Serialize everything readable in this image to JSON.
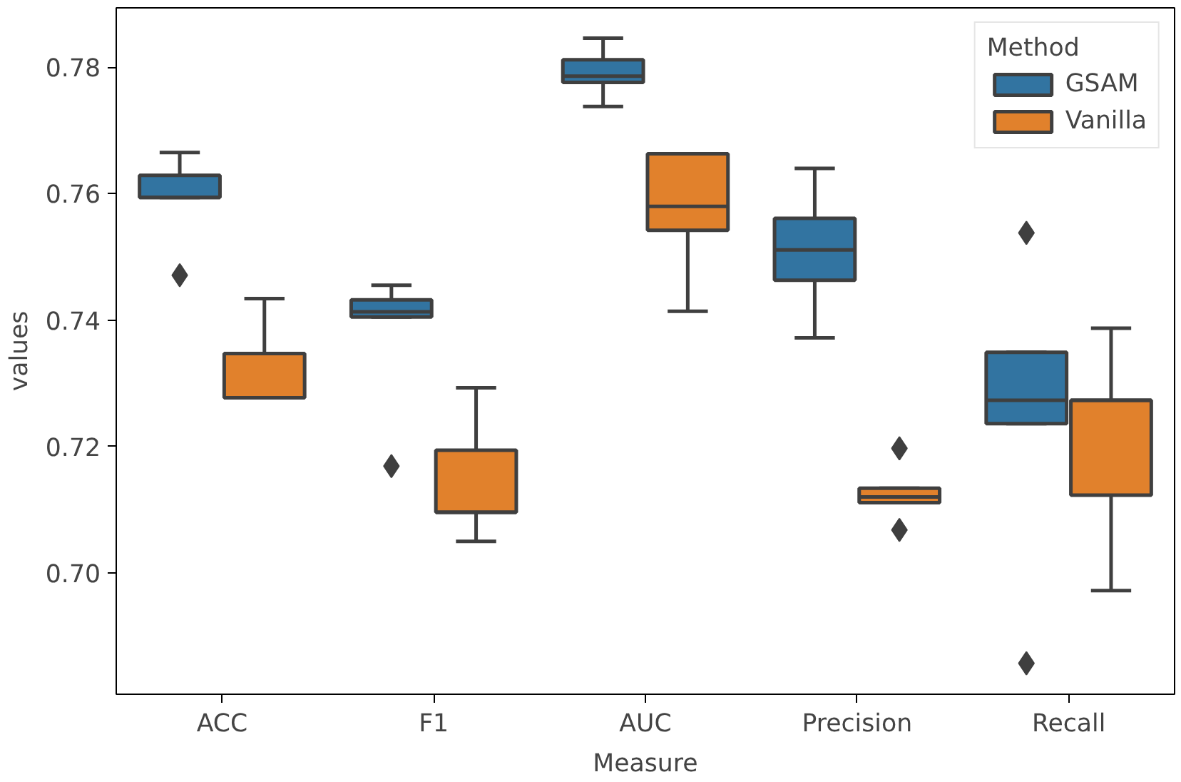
{
  "chart_data": {
    "type": "box",
    "xlabel": "Measure",
    "ylabel": "values",
    "legend_title": "Method",
    "categories": [
      "ACC",
      "F1",
      "AUC",
      "Precision",
      "Recall"
    ],
    "ylim": [
      0.6808,
      0.7894
    ],
    "yticks": [
      {
        "value": 0.7,
        "label": "0.70"
      },
      {
        "value": 0.72,
        "label": "0.72"
      },
      {
        "value": 0.74,
        "label": "0.74"
      },
      {
        "value": 0.76,
        "label": "0.76"
      },
      {
        "value": 0.78,
        "label": "0.78"
      }
    ],
    "grid": false,
    "legend": "top right",
    "marker": "diamond",
    "series": [
      {
        "name": "GSAM",
        "color": "#3274a1",
        "boxes": [
          {
            "low": 0.7594,
            "q1": 0.7594,
            "median": 0.7594,
            "q3": 0.7629,
            "high": 0.7665,
            "outliers": [
              0.7471
            ]
          },
          {
            "low": 0.7405,
            "q1": 0.7405,
            "median": 0.7413,
            "q3": 0.7432,
            "high": 0.7455,
            "outliers": [
              0.7169
            ]
          },
          {
            "low": 0.7738,
            "q1": 0.7776,
            "median": 0.7786,
            "q3": 0.7812,
            "high": 0.7846
          },
          {
            "low": 0.7372,
            "q1": 0.7463,
            "median": 0.7511,
            "q3": 0.7561,
            "high": 0.764
          },
          {
            "low": 0.7236,
            "q1": 0.7236,
            "median": 0.7273,
            "q3": 0.7349,
            "high": 0.7349,
            "outliers": [
              0.7538,
              0.6857
            ]
          }
        ]
      },
      {
        "name": "Vanilla",
        "color": "#e1812c",
        "boxes": [
          {
            "low": 0.7277,
            "q1": 0.7277,
            "median": 0.7277,
            "q3": 0.7347,
            "high": 0.7434
          },
          {
            "low": 0.705,
            "q1": 0.7096,
            "median": 0.7096,
            "q3": 0.7194,
            "high": 0.7293
          },
          {
            "low": 0.7414,
            "q1": 0.7542,
            "median": 0.758,
            "q3": 0.7663,
            "high": 0.7663
          },
          {
            "low": 0.7111,
            "q1": 0.7111,
            "median": 0.712,
            "q3": 0.7134,
            "high": 0.7134,
            "outliers": [
              0.7197,
              0.7068
            ]
          },
          {
            "low": 0.6972,
            "q1": 0.7123,
            "median": 0.7273,
            "q3": 0.7273,
            "high": 0.7387
          }
        ]
      }
    ]
  }
}
